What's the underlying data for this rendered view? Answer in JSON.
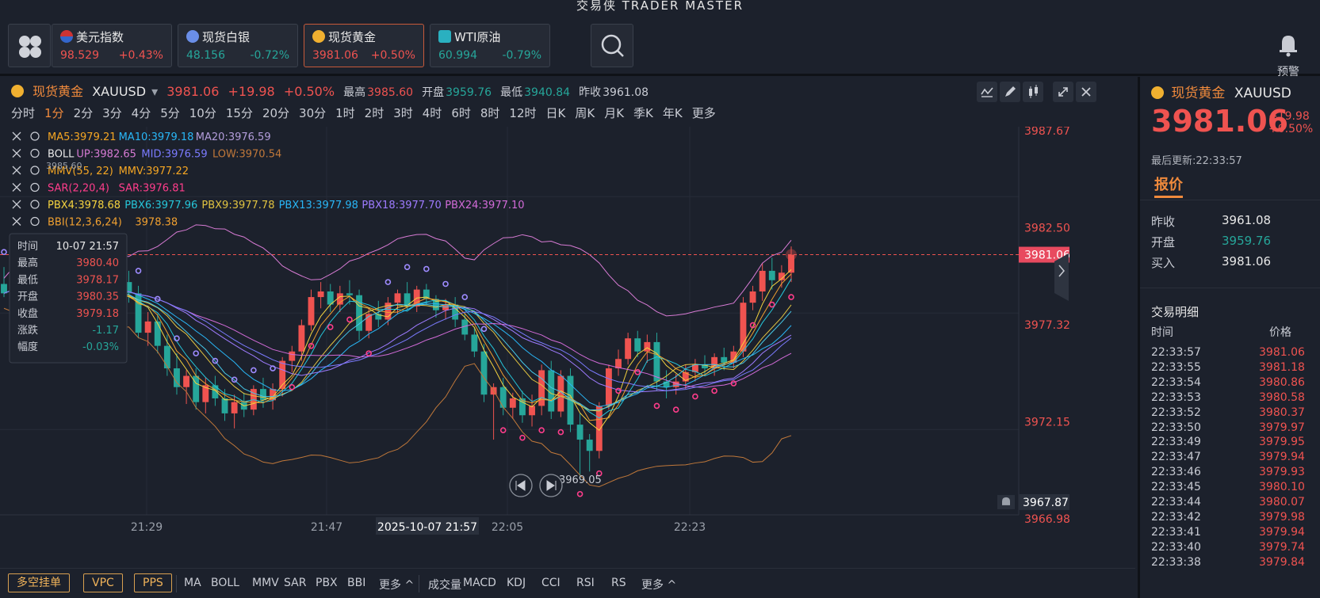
{
  "app_title": "交易侠 TRADER MASTER",
  "quotes": [
    {
      "name": "美元指数",
      "price": "98.529",
      "change": "+0.43%",
      "dir": "up"
    },
    {
      "name": "现货白银",
      "price": "48.156",
      "change": "-0.72%",
      "dir": "down"
    },
    {
      "name": "现货黄金",
      "price": "3981.06",
      "change": "+0.50%",
      "dir": "up"
    },
    {
      "name": "WTI原油",
      "price": "60.994",
      "change": "-0.79%",
      "dir": "down"
    }
  ],
  "alert_label": "预警",
  "symbol": {
    "name": "现货黄金",
    "code": "XAUUSD",
    "price": "3981.06",
    "change": "+19.98",
    "pct": "+0.50%",
    "high_label": "最高",
    "high": "3985.60",
    "open_label": "开盘",
    "open": "3959.76",
    "low_label": "最低",
    "low": "3940.84",
    "prev_label": "昨收",
    "prev": "3961.08"
  },
  "timeframes": [
    "分时",
    "1分",
    "2分",
    "3分",
    "4分",
    "5分",
    "10分",
    "15分",
    "20分",
    "30分",
    "1时",
    "2时",
    "3时",
    "4时",
    "6时",
    "8时",
    "12时",
    "日K",
    "周K",
    "月K",
    "季K",
    "年K",
    "更多"
  ],
  "active_timeframe": "1分",
  "indicators": {
    "ma": {
      "ma5": "MA5:3979.21",
      "ma10": "MA10:3979.18",
      "ma20": "MA20:3976.59"
    },
    "boll": {
      "name": "BOLL",
      "up": "UP:3982.65",
      "mid": "MID:3976.59",
      "low": "LOW:3970.54"
    },
    "mmv": {
      "name": "MMV(55, 22)",
      "val": "MMV:3977.22"
    },
    "sar": {
      "name": "SAR(2,20,4)",
      "val": "SAR:3976.81"
    },
    "pbx": {
      "p4": "PBX4:3978.68",
      "p6": "PBX6:3977.96",
      "p9": "PBX9:3977.78",
      "p13": "PBX13:3977.98",
      "p18": "PBX18:3977.70",
      "p24": "PBX24:3977.10"
    },
    "bbi": {
      "name": "BBI(12,3,6,24)",
      "val": "3978.38"
    },
    "extra": "3985.60"
  },
  "tooltip": {
    "time_label": "时间",
    "time": "10-07 21:57",
    "high_label": "最高",
    "high": "3980.40",
    "low_label": "最低",
    "low": "3978.17",
    "open_label": "开盘",
    "open": "3980.35",
    "close_label": "收盘",
    "close": "3979.18",
    "chg_label": "涨跌",
    "chg": "-1.17",
    "amp_label": "幅度",
    "amp": "-0.03%"
  },
  "price_axis": [
    "3987.67",
    "3982.50",
    "3977.32",
    "3972.15",
    "3967.87",
    "3966.98"
  ],
  "current_price_tag": "3981.06",
  "time_axis": [
    "21:29",
    "21:47",
    "22:05",
    "22:23"
  ],
  "cursor_time": "2025-10-07 21:57",
  "low_marker": "3969.05",
  "bottom": {
    "buttons": [
      "多空挂单",
      "VPC",
      "PPS"
    ],
    "main_ind": [
      "MA",
      "BOLL",
      "MMV",
      "SAR",
      "PBX",
      "BBI",
      "更多 ^"
    ],
    "sub_ind": [
      "成交量",
      "MACD",
      "KDJ",
      "CCI",
      "RSI",
      "RS",
      "更多 ^"
    ]
  },
  "right_panel": {
    "name": "现货黄金",
    "code": "XAUUSD",
    "price": "3981.06",
    "change": "+19.98",
    "pct": "+0.50%",
    "updated": "最后更新:22:33:57",
    "tab": "报价",
    "stats": [
      {
        "label": "昨收",
        "value": "3961.08"
      },
      {
        "label": "开盘",
        "value": "3959.76"
      },
      {
        "label": "买入",
        "value": "3981.06"
      }
    ],
    "trades_title": "交易明细",
    "col_time": "时间",
    "col_price": "价格",
    "trades": [
      {
        "t": "22:33:57",
        "p": "3981.06"
      },
      {
        "t": "22:33:55",
        "p": "3981.18"
      },
      {
        "t": "22:33:54",
        "p": "3980.86"
      },
      {
        "t": "22:33:53",
        "p": "3980.58"
      },
      {
        "t": "22:33:52",
        "p": "3980.37"
      },
      {
        "t": "22:33:50",
        "p": "3979.97"
      },
      {
        "t": "22:33:49",
        "p": "3979.95"
      },
      {
        "t": "22:33:47",
        "p": "3979.94"
      },
      {
        "t": "22:33:46",
        "p": "3979.93"
      },
      {
        "t": "22:33:45",
        "p": "3980.10"
      },
      {
        "t": "22:33:44",
        "p": "3980.07"
      },
      {
        "t": "22:33:42",
        "p": "3979.98"
      },
      {
        "t": "22:33:41",
        "p": "3979.94"
      },
      {
        "t": "22:33:40",
        "p": "3979.74"
      },
      {
        "t": "22:33:38",
        "p": "3979.84"
      }
    ]
  },
  "colors": {
    "up": "#ef5350",
    "down": "#26a69a",
    "accent": "#f08a3c"
  },
  "chart_data": {
    "type": "candlestick",
    "ylim": [
      3966.98,
      3987.67
    ],
    "x_ticks": [
      "21:29",
      "21:47",
      "22:05",
      "22:23"
    ],
    "candles": [
      [
        3979.5,
        3980.4,
        3978.8,
        3979.0
      ],
      [
        3979.0,
        3979.8,
        3978.2,
        3979.4
      ],
      [
        3979.4,
        3980.6,
        3978.9,
        3980.2
      ],
      [
        3980.2,
        3980.5,
        3979.0,
        3979.2
      ],
      [
        3979.2,
        3980.0,
        3978.6,
        3979.8
      ],
      [
        3979.8,
        3980.3,
        3978.4,
        3978.7
      ],
      [
        3978.7,
        3979.5,
        3978.0,
        3979.0
      ],
      [
        3979.0,
        3979.6,
        3978.1,
        3978.4
      ],
      [
        3978.4,
        3979.2,
        3977.8,
        3978.9
      ],
      [
        3978.9,
        3979.6,
        3978.3,
        3979.3
      ],
      [
        3979.3,
        3979.7,
        3977.9,
        3978.1
      ],
      [
        3978.1,
        3978.9,
        3977.5,
        3978.6
      ],
      [
        3978.6,
        3980.0,
        3978.2,
        3979.6
      ],
      [
        3979.6,
        3980.2,
        3978.5,
        3979.0
      ],
      [
        3979.0,
        3979.4,
        3976.6,
        3976.9
      ],
      [
        3976.9,
        3978.0,
        3976.2,
        3977.5
      ],
      [
        3977.5,
        3977.9,
        3975.8,
        3976.2
      ],
      [
        3976.2,
        3976.8,
        3974.6,
        3975.0
      ],
      [
        3975.0,
        3975.8,
        3973.6,
        3974.0
      ],
      [
        3974.0,
        3974.9,
        3973.1,
        3974.6
      ],
      [
        3974.6,
        3975.0,
        3972.8,
        3973.2
      ],
      [
        3973.2,
        3974.5,
        3972.6,
        3974.1
      ],
      [
        3974.1,
        3974.6,
        3973.0,
        3973.4
      ],
      [
        3973.4,
        3973.9,
        3972.2,
        3972.6
      ],
      [
        3972.6,
        3973.6,
        3971.8,
        3973.2
      ],
      [
        3973.2,
        3973.7,
        3972.4,
        3972.8
      ],
      [
        3972.8,
        3974.1,
        3972.5,
        3973.9
      ],
      [
        3973.9,
        3974.5,
        3972.9,
        3973.3
      ],
      [
        3973.3,
        3974.2,
        3972.8,
        3973.9
      ],
      [
        3973.9,
        3975.6,
        3973.5,
        3975.4
      ],
      [
        3975.4,
        3976.2,
        3974.8,
        3975.9
      ],
      [
        3975.9,
        3977.6,
        3975.4,
        3977.3
      ],
      [
        3977.3,
        3979.2,
        3977.0,
        3978.8
      ],
      [
        3978.8,
        3979.6,
        3978.2,
        3979.1
      ],
      [
        3979.1,
        3979.5,
        3978.0,
        3978.4
      ],
      [
        3978.4,
        3979.4,
        3978.0,
        3979.0
      ],
      [
        3979.0,
        3979.7,
        3978.4,
        3978.9
      ],
      [
        3978.9,
        3979.2,
        3976.5,
        3977.0
      ],
      [
        3977.0,
        3978.2,
        3976.6,
        3977.9
      ],
      [
        3977.9,
        3978.6,
        3977.2,
        3977.6
      ],
      [
        3977.6,
        3978.8,
        3977.3,
        3978.5
      ],
      [
        3978.5,
        3979.2,
        3977.9,
        3979.0
      ],
      [
        3979.0,
        3979.6,
        3978.1,
        3978.3
      ],
      [
        3978.3,
        3979.4,
        3978.0,
        3979.2
      ],
      [
        3979.2,
        3979.5,
        3978.4,
        3978.7
      ],
      [
        3978.7,
        3978.9,
        3977.7,
        3978.1
      ],
      [
        3978.1,
        3978.7,
        3977.6,
        3978.4
      ],
      [
        3978.4,
        3978.8,
        3977.2,
        3977.6
      ],
      [
        3977.6,
        3978.0,
        3976.5,
        3976.8
      ],
      [
        3976.8,
        3977.2,
        3975.6,
        3975.9
      ],
      [
        3975.9,
        3976.3,
        3973.2,
        3973.6
      ],
      [
        3973.6,
        3974.2,
        3971.2,
        3974.0
      ],
      [
        3974.0,
        3974.5,
        3972.5,
        3972.9
      ],
      [
        3972.9,
        3973.7,
        3972.3,
        3973.4
      ],
      [
        3973.4,
        3973.8,
        3972.1,
        3972.5
      ],
      [
        3972.5,
        3973.6,
        3971.9,
        3973.0
      ],
      [
        3973.0,
        3975.2,
        3972.5,
        3974.9
      ],
      [
        3974.9,
        3975.4,
        3972.3,
        3972.7
      ],
      [
        3972.7,
        3974.9,
        3972.4,
        3974.6
      ],
      [
        3974.6,
        3975.0,
        3971.6,
        3972.0
      ],
      [
        3972.0,
        3972.6,
        3969.1,
        3971.2
      ],
      [
        3971.2,
        3971.5,
        3969.5,
        3970.6
      ],
      [
        3970.6,
        3973.2,
        3970.2,
        3973.0
      ],
      [
        3973.0,
        3975.2,
        3972.8,
        3975.0
      ],
      [
        3975.0,
        3976.0,
        3974.6,
        3975.5
      ],
      [
        3975.5,
        3976.9,
        3975.2,
        3976.6
      ],
      [
        3976.6,
        3977.0,
        3975.6,
        3975.9
      ],
      [
        3975.9,
        3976.8,
        3975.3,
        3976.4
      ],
      [
        3976.4,
        3976.9,
        3973.8,
        3974.3
      ],
      [
        3974.3,
        3974.9,
        3973.4,
        3974.0
      ],
      [
        3974.0,
        3974.7,
        3973.6,
        3974.3
      ],
      [
        3974.3,
        3975.2,
        3973.9,
        3974.8
      ],
      [
        3974.8,
        3975.5,
        3974.3,
        3975.2
      ],
      [
        3975.2,
        3975.7,
        3974.6,
        3975.0
      ],
      [
        3975.0,
        3975.8,
        3974.6,
        3975.6
      ],
      [
        3975.6,
        3976.1,
        3974.9,
        3975.3
      ],
      [
        3975.3,
        3976.2,
        3975.0,
        3975.9
      ],
      [
        3975.9,
        3978.8,
        3975.6,
        3978.5
      ],
      [
        3978.5,
        3979.4,
        3978.1,
        3979.1
      ],
      [
        3979.1,
        3980.6,
        3978.6,
        3980.2
      ],
      [
        3980.2,
        3980.9,
        3979.2,
        3979.7
      ],
      [
        3979.7,
        3980.5,
        3979.3,
        3980.1
      ],
      [
        3980.1,
        3981.5,
        3979.6,
        3981.06
      ]
    ]
  }
}
